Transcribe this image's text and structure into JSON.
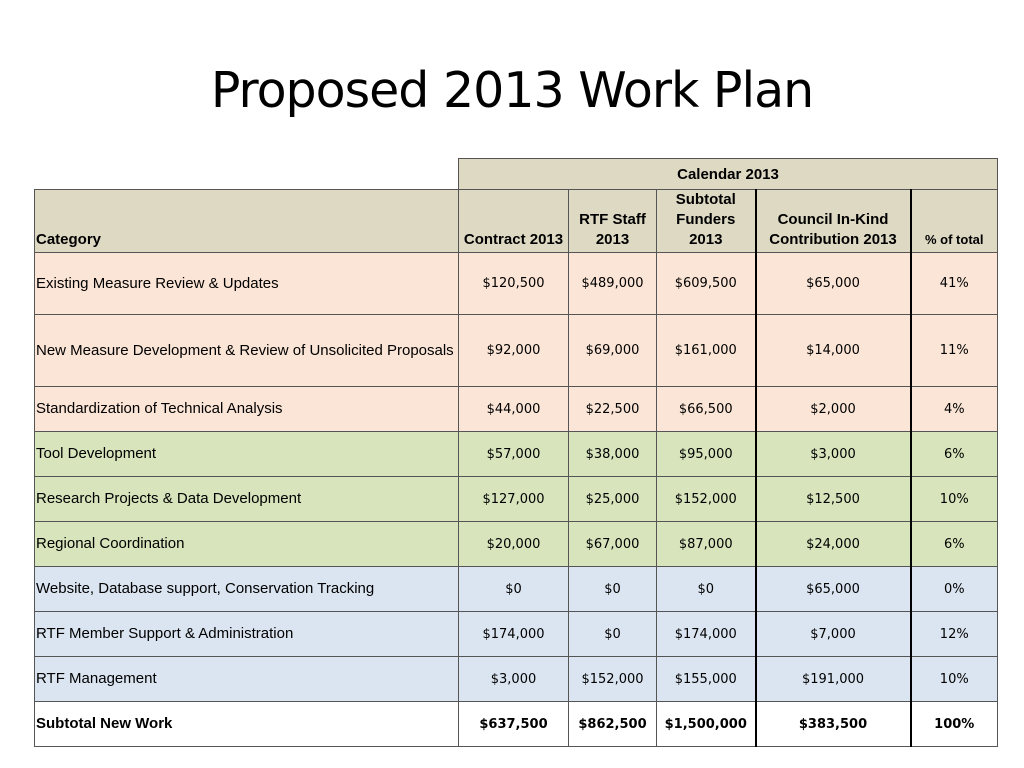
{
  "title": "Proposed 2013 Work Plan",
  "table": {
    "group_header": "Calendar 2013",
    "columns": [
      "Category",
      "Contract 2013",
      "RTF Staff 2013",
      "Subtotal Funders 2013",
      "Council In-Kind Contribution 2013",
      "% of total"
    ],
    "row_colors": {
      "peach": "#fbe5d6",
      "green": "#d7e4bc",
      "blue": "#dbe5f1",
      "header": "#ddd9c3"
    },
    "rows": [
      {
        "group": "peach",
        "cells": [
          "Existing Measure Review & Updates",
          "$120,500",
          "$489,000",
          "$609,500",
          "$65,000",
          "41%"
        ]
      },
      {
        "group": "peach",
        "cells": [
          "New Measure Development & Review of Unsolicited Proposals",
          "$92,000",
          "$69,000",
          "$161,000",
          "$14,000",
          "11%"
        ]
      },
      {
        "group": "peach",
        "cells": [
          "Standardization of Technical Analysis",
          "$44,000",
          "$22,500",
          "$66,500",
          "$2,000",
          "4%"
        ]
      },
      {
        "group": "green",
        "cells": [
          "Tool Development",
          "$57,000",
          "$38,000",
          "$95,000",
          "$3,000",
          "6%"
        ]
      },
      {
        "group": "green",
        "cells": [
          "Research Projects & Data Development",
          "$127,000",
          "$25,000",
          "$152,000",
          "$12,500",
          "10%"
        ]
      },
      {
        "group": "green",
        "cells": [
          "Regional Coordination",
          "$20,000",
          "$67,000",
          "$87,000",
          "$24,000",
          "6%"
        ]
      },
      {
        "group": "blue",
        "cells": [
          "Website, Database support, Conservation Tracking",
          "$0",
          "$0",
          "$0",
          "$65,000",
          "0%"
        ]
      },
      {
        "group": "blue",
        "cells": [
          "RTF Member Support & Administration",
          "$174,000",
          "$0",
          "$174,000",
          "$7,000",
          "12%"
        ]
      },
      {
        "group": "blue",
        "cells": [
          "RTF Management",
          "$3,000",
          "$152,000",
          "$155,000",
          "$191,000",
          "10%"
        ]
      },
      {
        "group": "total",
        "cells": [
          "Subtotal New Work",
          "$637,500",
          "$862,500",
          "$1,500,000",
          "$383,500",
          "100%"
        ]
      }
    ]
  }
}
